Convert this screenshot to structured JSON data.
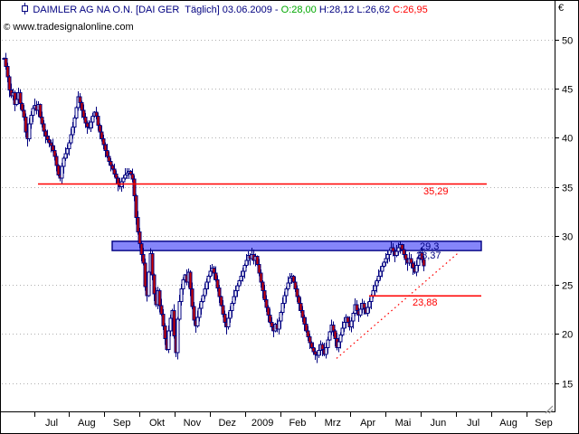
{
  "header": {
    "title_prefix": "DAIMLER AG NA O.N. [DAI GER  Täglich] 03.06.2009 - ",
    "open_text": "O:28,00",
    "mid_text": " H:28,12 L:26,62 ",
    "close_text": "C:26,95",
    "watermark_icon": "©",
    "watermark_text": "www.tradesignalonline.com"
  },
  "axis": {
    "currency_symbol": "€"
  },
  "chart_data": {
    "type": "candlestick",
    "title": "DAIMLER AG NA O.N. [DAI GER Täglich]",
    "date_label": "03.06.2009",
    "latest_ohlc": {
      "open": 28.0,
      "high": 28.12,
      "low": 26.62,
      "close": 26.95
    },
    "y_unit": "€",
    "ylim": [
      12,
      54
    ],
    "grid": "horizontal-dotted",
    "y_ticks": [
      50,
      45,
      40,
      35,
      30,
      25,
      20,
      15
    ],
    "x_labels": [
      "Jul",
      "Aug",
      "Sep",
      "Okt",
      "Nov",
      "Dez",
      "2009",
      "Feb",
      "Mrz",
      "Apr",
      "Mai",
      "Jun",
      "Jul",
      "Aug",
      "Sep"
    ],
    "candles": {
      "start_x": 4,
      "step_x": 2,
      "closes": [
        48.1,
        47.3,
        46.2,
        44.9,
        44.3,
        44.6,
        43.4,
        43.9,
        44.6,
        43.5,
        42.8,
        42.1,
        40.6,
        39.9,
        41.4,
        42.3,
        43.0,
        43.3,
        42.8,
        43.4,
        42.1,
        41.4,
        40.7,
        40.2,
        39.8,
        39.5,
        39.2,
        38.7,
        38.1,
        37.2,
        36.2,
        35.9,
        37.1,
        37.9,
        38.4,
        38.9,
        39.5,
        40.3,
        41.1,
        42.0,
        43.1,
        44.2,
        43.6,
        42.8,
        42.1,
        41.5,
        41.1,
        41.0,
        41.6,
        42.2,
        42.6,
        42.2,
        41.3,
        40.6,
        39.9,
        39.3,
        38.7,
        38.1,
        37.6,
        37.2,
        36.8,
        36.3,
        35.9,
        35.3,
        35.0,
        35.5,
        35.9,
        36.2,
        36.4,
        36.6,
        36.3,
        35.8,
        34.1,
        31.9,
        30.4,
        29.2,
        28.1,
        27.2,
        24.8,
        23.9,
        26.3,
        28.2,
        26.0,
        24.1,
        23.0,
        24.4,
        22.9,
        22.0,
        20.8,
        19.5,
        18.4,
        20.3,
        21.6,
        22.4,
        19.8,
        18.1,
        21.5,
        23.3,
        24.6,
        25.5,
        26.0,
        25.3,
        26.3,
        24.6,
        22.8,
        21.4,
        20.8,
        21.7,
        22.6,
        23.3,
        23.9,
        24.6,
        25.3,
        25.9,
        26.4,
        26.7,
        26.2,
        25.5,
        24.7,
        23.8,
        22.9,
        22.0,
        21.2,
        20.7,
        21.6,
        22.4,
        23.1,
        23.8,
        24.4,
        24.9,
        25.4,
        25.9,
        26.4,
        27.0,
        27.5,
        28.0,
        27.7,
        28.1,
        27.5,
        27.9,
        27.1,
        26.2,
        25.3,
        24.4,
        23.5,
        22.7,
        21.9,
        21.2,
        20.7,
        20.3,
        21.0,
        20.5,
        21.3,
        22.2,
        23.1,
        23.9,
        24.6,
        25.2,
        25.7,
        25.9,
        25.3,
        24.6,
        23.8,
        23.1,
        22.4,
        21.7,
        21.0,
        20.3,
        19.7,
        19.1,
        18.6,
        18.2,
        17.9,
        17.8,
        18.3,
        18.9,
        18.4,
        17.9,
        18.6,
        19.4,
        20.2,
        20.9,
        20.3,
        19.5,
        18.6,
        19.2,
        19.9,
        20.6,
        21.2,
        21.7,
        21.2,
        20.7,
        21.3,
        22.1,
        23.0,
        22.4,
        21.9,
        22.5,
        23.1,
        22.6,
        22.1,
        22.7,
        23.3,
        23.9,
        24.4,
        24.9,
        25.4,
        25.9,
        26.4,
        26.9,
        27.3,
        27.7,
        28.1,
        28.5,
        28.8,
        28.4,
        28.0,
        28.4,
        28.8,
        29.1,
        28.6,
        28.1,
        27.6,
        27.2,
        27.7,
        27.2,
        26.7,
        26.3,
        27.0,
        27.7,
        28.3,
        27.6,
        26.95
      ]
    },
    "annotations": {
      "resistance": {
        "label": "35,29",
        "value": 35.29,
        "x1": 42,
        "x2": 538,
        "label_x": 468,
        "color": "#ff0000"
      },
      "support": {
        "label": "23,88",
        "value": 23.88,
        "x1": 408,
        "x2": 532,
        "label_x": 456,
        "color": "#ff0000"
      },
      "band": {
        "label": "29,3",
        "v_top": 29.45,
        "v_bottom": 28.5,
        "x1": 124,
        "x2": 532,
        "label_x": 464,
        "fill": "#8585fa",
        "border": "#000080"
      },
      "price_note": {
        "label": "28,37",
        "value": 28.37,
        "label_x": 460,
        "color": "#000080"
      },
      "trendline": {
        "x1": 372,
        "v1": 17.5,
        "x2": 507,
        "v2": 28.3,
        "color": "#ff0000",
        "style": "dotted"
      }
    },
    "colors": {
      "outline": "#000080",
      "candle_down": "#cc0000",
      "candle_up": "#ffffff",
      "grid": "#b0b0b0",
      "line_red": "#ff0000",
      "band_fill": "#8585fa",
      "title_navy": "#000080",
      "open_green": "#00a800",
      "close_red": "#ff0000",
      "axis_text": "#000000",
      "background": "#ffffff"
    }
  }
}
